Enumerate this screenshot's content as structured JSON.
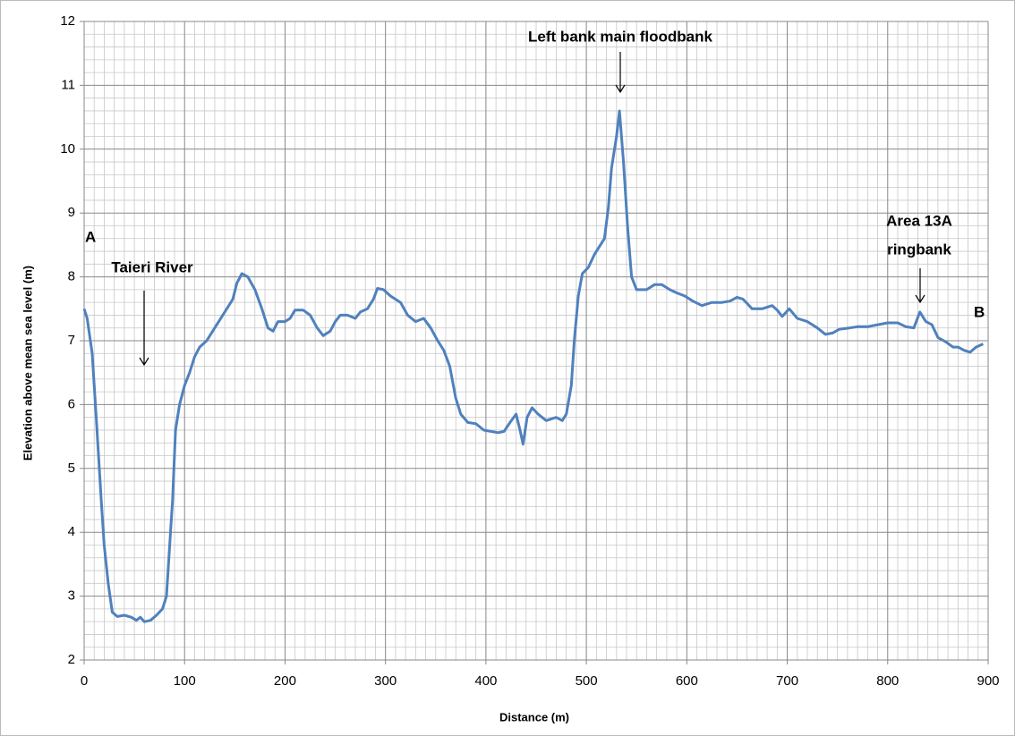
{
  "chart_data": {
    "type": "line",
    "x_label": "Distance (m)",
    "y_label": "Elevation above mean sea level (m)",
    "annotations": {
      "a": "A",
      "b": "B",
      "river": "Taieri River",
      "floodbank": "Left bank main floodbank",
      "ringbank_1": "Area 13A",
      "ringbank_2": "ringbank"
    },
    "xlim": [
      0,
      900
    ],
    "xticks": [
      0,
      100,
      200,
      300,
      400,
      500,
      600,
      700,
      800,
      900
    ],
    "ylim": [
      2,
      12
    ],
    "yticks": [
      2,
      3,
      4,
      5,
      6,
      7,
      8,
      9,
      10,
      11,
      12
    ],
    "grid": true,
    "series": [
      {
        "color": "#4f81bd",
        "x": [
          0,
          3,
          8,
          12,
          17,
          20,
          24,
          28,
          33,
          40,
          47,
          52,
          56,
          60,
          66,
          72,
          78,
          82,
          86,
          88,
          91,
          95,
          100,
          105,
          110,
          115,
          122,
          130,
          140,
          148,
          152,
          157,
          163,
          170,
          177,
          183,
          188,
          193,
          200,
          205,
          210,
          218,
          225,
          232,
          238,
          245,
          250,
          255,
          262,
          270,
          275,
          282,
          288,
          292,
          298,
          305,
          315,
          322,
          330,
          338,
          345,
          352,
          358,
          364,
          370,
          375,
          382,
          390,
          398,
          405,
          412,
          418,
          424,
          430,
          434,
          437,
          441,
          446,
          452,
          460,
          470,
          476,
          480,
          485,
          488,
          492,
          496,
          502,
          508,
          514,
          518,
          522,
          525,
          530,
          533,
          537,
          541,
          545,
          550,
          560,
          568,
          575,
          583,
          590,
          598,
          606,
          615,
          625,
          635,
          643,
          650,
          656,
          665,
          675,
          685,
          690,
          695,
          702,
          710,
          720,
          730,
          738,
          745,
          752,
          762,
          770,
          780,
          790,
          800,
          810,
          818,
          826,
          832,
          838,
          844,
          850,
          858,
          865,
          870,
          876,
          882,
          888,
          895
        ],
        "values": [
          7.5,
          7.35,
          6.8,
          5.8,
          4.5,
          3.8,
          3.2,
          2.75,
          2.68,
          2.7,
          2.67,
          2.62,
          2.67,
          2.6,
          2.62,
          2.7,
          2.8,
          3.0,
          4.0,
          4.5,
          5.6,
          6.0,
          6.3,
          6.5,
          6.75,
          6.9,
          7.0,
          7.2,
          7.45,
          7.65,
          7.9,
          8.05,
          8.0,
          7.8,
          7.5,
          7.2,
          7.15,
          7.3,
          7.3,
          7.35,
          7.48,
          7.48,
          7.4,
          7.2,
          7.08,
          7.15,
          7.3,
          7.4,
          7.4,
          7.35,
          7.45,
          7.5,
          7.65,
          7.82,
          7.8,
          7.7,
          7.6,
          7.4,
          7.3,
          7.35,
          7.2,
          7.0,
          6.85,
          6.6,
          6.1,
          5.85,
          5.72,
          5.7,
          5.6,
          5.58,
          5.56,
          5.58,
          5.72,
          5.85,
          5.6,
          5.38,
          5.8,
          5.95,
          5.85,
          5.75,
          5.8,
          5.75,
          5.85,
          6.3,
          7.0,
          7.7,
          8.05,
          8.15,
          8.35,
          8.5,
          8.6,
          9.1,
          9.7,
          10.2,
          10.6,
          9.8,
          8.8,
          8.0,
          7.8,
          7.8,
          7.88,
          7.88,
          7.8,
          7.75,
          7.7,
          7.62,
          7.55,
          7.6,
          7.6,
          7.62,
          7.68,
          7.65,
          7.5,
          7.5,
          7.55,
          7.48,
          7.38,
          7.5,
          7.35,
          7.3,
          7.2,
          7.1,
          7.12,
          7.18,
          7.2,
          7.22,
          7.22,
          7.25,
          7.28,
          7.28,
          7.22,
          7.2,
          7.45,
          7.3,
          7.25,
          7.05,
          6.98,
          6.9,
          6.9,
          6.85,
          6.82,
          6.9,
          6.95
        ]
      }
    ]
  }
}
